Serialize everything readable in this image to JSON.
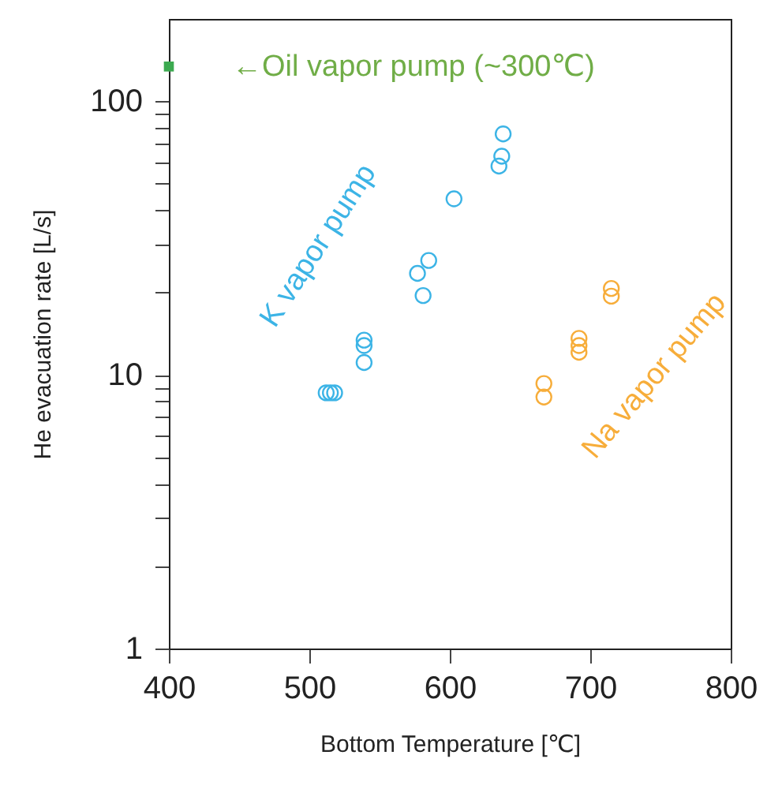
{
  "chart_data": {
    "type": "scatter",
    "xlabel": "Bottom Temperature [℃]",
    "ylabel": "He evacuation rate    [L/s]",
    "xlim": [
      400,
      800
    ],
    "xticks": [
      400,
      500,
      600,
      700,
      800
    ],
    "ylim": [
      1,
      200
    ],
    "log": "y",
    "yticks": [
      1,
      {
        "value": 2,
        "label": null
      },
      {
        "value": 3,
        "label": null
      },
      {
        "value": 4,
        "label": null
      },
      {
        "value": 5,
        "label": null
      },
      {
        "value": 6,
        "label": null
      },
      {
        "value": 7,
        "label": null
      },
      {
        "value": 8,
        "label": null
      },
      {
        "value": 9,
        "label": null
      },
      10,
      {
        "value": 20,
        "label": null
      },
      {
        "value": 30,
        "label": null
      },
      {
        "value": 40,
        "label": null
      },
      {
        "value": 50,
        "label": null
      },
      {
        "value": 60,
        "label": null
      },
      {
        "value": 70,
        "label": null
      },
      {
        "value": 80,
        "label": null
      },
      {
        "value": 90,
        "label": null
      },
      100
    ],
    "grid": false,
    "marker": "circle",
    "series": [
      {
        "name": "K vapor pump",
        "color": "#3cb4e6",
        "x": [
          512,
          515,
          518,
          539,
          539,
          539,
          581,
          577,
          585,
          603,
          635,
          637,
          638
        ],
        "values": [
          8.6,
          8.6,
          8.6,
          13.4,
          12.8,
          11.1,
          19.5,
          23.5,
          26.2,
          44,
          58,
          63,
          76
        ]
      },
      {
        "name": "Na vapor pump",
        "color": "#f7ad3a",
        "x": [
          667,
          667,
          692,
          692,
          692,
          715,
          715
        ],
        "values": [
          9.3,
          8.3,
          13.6,
          12.8,
          12.1,
          20.7,
          19.4
        ]
      },
      {
        "color": "#3caa50",
        "marker": "square",
        "x": [
          400
        ],
        "values": [
          134
        ]
      }
    ],
    "annotations": [
      {
        "text": "←Oil vapor pump (~300℃)",
        "x": 400,
        "y": 134
      }
    ]
  }
}
